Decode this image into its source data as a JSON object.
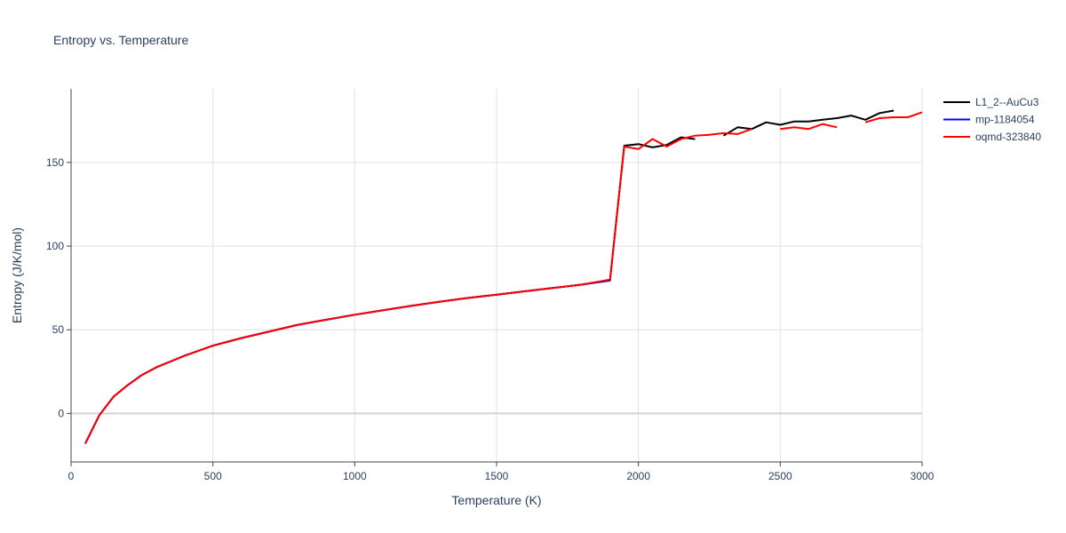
{
  "chart_data": {
    "type": "line",
    "title": "Entropy vs. Temperature",
    "xlabel": "Temperature (K)",
    "ylabel": "Entropy (J/K/mol)",
    "xlim": [
      0,
      3000
    ],
    "ylim": [
      -29,
      194
    ],
    "xticks": [
      0,
      500,
      1000,
      1500,
      2000,
      2500,
      3000
    ],
    "yticks": [
      0,
      50,
      100,
      150
    ],
    "grid": true,
    "legend_position": "top-right",
    "series": [
      {
        "name": "L1_2--AuCu3",
        "color": "#000000",
        "segments": [
          [
            [
              50,
              -18
            ],
            [
              100,
              -1
            ],
            [
              150,
              10
            ],
            [
              200,
              17
            ],
            [
              250,
              23
            ],
            [
              300,
              27.5
            ],
            [
              350,
              31
            ],
            [
              400,
              34.5
            ],
            [
              450,
              37.5
            ],
            [
              500,
              40.5
            ],
            [
              600,
              45
            ],
            [
              700,
              49
            ],
            [
              800,
              53
            ],
            [
              900,
              56
            ],
            [
              1000,
              59
            ],
            [
              1100,
              61.7
            ],
            [
              1200,
              64.3
            ],
            [
              1300,
              66.8
            ],
            [
              1400,
              69
            ],
            [
              1500,
              71
            ],
            [
              1600,
              73
            ],
            [
              1700,
              75
            ],
            [
              1800,
              77
            ],
            [
              1900,
              79.5
            ],
            [
              1950,
              160
            ],
            [
              2000,
              161
            ],
            [
              2050,
              159
            ],
            [
              2100,
              160.5
            ],
            [
              2150,
              165
            ],
            [
              2200,
              164
            ]
          ],
          [
            [
              2300,
              166
            ],
            [
              2350,
              171
            ],
            [
              2400,
              170
            ],
            [
              2450,
              174
            ],
            [
              2500,
              172.5
            ],
            [
              2550,
              174.5
            ],
            [
              2600,
              174.5
            ],
            [
              2650,
              175.5
            ],
            [
              2700,
              176.5
            ],
            [
              2750,
              178
            ],
            [
              2800,
              175.5
            ],
            [
              2850,
              179.5
            ],
            [
              2900,
              181
            ]
          ]
        ]
      },
      {
        "name": "mp-1184054",
        "color": "#0000ff",
        "segments": [
          [
            [
              50,
              -18
            ],
            [
              100,
              -1
            ],
            [
              150,
              10
            ],
            [
              200,
              17
            ],
            [
              250,
              23
            ],
            [
              300,
              27.5
            ],
            [
              350,
              31
            ],
            [
              400,
              34.5
            ],
            [
              450,
              37.5
            ],
            [
              500,
              40.5
            ],
            [
              600,
              45
            ],
            [
              700,
              49
            ],
            [
              800,
              53
            ],
            [
              900,
              56
            ],
            [
              1000,
              59
            ],
            [
              1100,
              61.7
            ],
            [
              1200,
              64.3
            ],
            [
              1300,
              66.8
            ],
            [
              1400,
              69
            ],
            [
              1500,
              71
            ],
            [
              1600,
              73
            ],
            [
              1700,
              75
            ],
            [
              1800,
              77
            ],
            [
              1900,
              79.5
            ]
          ]
        ]
      },
      {
        "name": "oqmd-323840",
        "color": "#ff0000",
        "segments": [
          [
            [
              50,
              -18
            ],
            [
              100,
              -1
            ],
            [
              150,
              10
            ],
            [
              200,
              17
            ],
            [
              250,
              23
            ],
            [
              300,
              27.5
            ],
            [
              350,
              31
            ],
            [
              400,
              34.5
            ],
            [
              450,
              37.5
            ],
            [
              500,
              40.5
            ],
            [
              600,
              45
            ],
            [
              700,
              49
            ],
            [
              800,
              53
            ],
            [
              900,
              56
            ],
            [
              1000,
              59
            ],
            [
              1100,
              61.7
            ],
            [
              1200,
              64.3
            ],
            [
              1300,
              66.8
            ],
            [
              1400,
              69
            ],
            [
              1500,
              71
            ],
            [
              1600,
              73
            ],
            [
              1700,
              75
            ],
            [
              1800,
              77
            ],
            [
              1900,
              80
            ],
            [
              1950,
              159.5
            ],
            [
              2000,
              158
            ],
            [
              2050,
              164
            ],
            [
              2100,
              159.5
            ],
            [
              2150,
              164
            ],
            [
              2200,
              166
            ],
            [
              2250,
              166.5
            ],
            [
              2300,
              167.5
            ],
            [
              2350,
              167
            ],
            [
              2400,
              170
            ]
          ],
          [
            [
              2500,
              170
            ],
            [
              2550,
              171
            ],
            [
              2600,
              170
            ],
            [
              2650,
              173
            ],
            [
              2700,
              171
            ]
          ],
          [
            [
              2800,
              174
            ],
            [
              2850,
              176.5
            ],
            [
              2900,
              177
            ],
            [
              2950,
              177
            ],
            [
              3000,
              180
            ]
          ]
        ]
      }
    ]
  }
}
